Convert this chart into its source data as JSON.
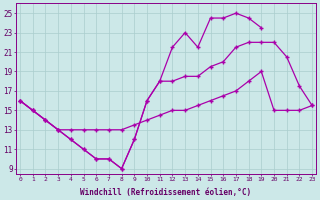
{
  "xlabel": "Windchill (Refroidissement éolien,°C)",
  "yticks": [
    9,
    11,
    13,
    15,
    17,
    19,
    21,
    23,
    25
  ],
  "xticks": [
    0,
    1,
    2,
    3,
    4,
    5,
    6,
    7,
    8,
    9,
    10,
    11,
    12,
    13,
    14,
    15,
    16,
    17,
    18,
    19,
    20,
    21,
    22,
    23
  ],
  "bg_color": "#cce8e8",
  "grid_color": "#aacece",
  "line_color": "#aa00aa",
  "line1_x": [
    0,
    1,
    2,
    3,
    4,
    5,
    6,
    7,
    8,
    9,
    10,
    11,
    12,
    13,
    14,
    15,
    16,
    17,
    18,
    19,
    20,
    21,
    22,
    23
  ],
  "line1_y": [
    16,
    15,
    14,
    13,
    12,
    11,
    10,
    10,
    9,
    12,
    16,
    18,
    21.5,
    23,
    21.5,
    24.5,
    24.5,
    25,
    24.5,
    23.5,
    null,
    null,
    null,
    null
  ],
  "line2_x": [
    0,
    1,
    2,
    3,
    4,
    5,
    6,
    7,
    8,
    9,
    10,
    11,
    12,
    13,
    14,
    15,
    16,
    17,
    18,
    19,
    20,
    21,
    22,
    23
  ],
  "line2_y": [
    16,
    15,
    14,
    13,
    13,
    13,
    13,
    13,
    13,
    13.5,
    14,
    14.5,
    15,
    15,
    15.5,
    16,
    16.5,
    17,
    18,
    19,
    15,
    15,
    15,
    15.5
  ],
  "line3_x": [
    0,
    1,
    2,
    3,
    4,
    5,
    6,
    7,
    8,
    9,
    10,
    11,
    12,
    13,
    14,
    15,
    16,
    17,
    18,
    19,
    20,
    21,
    22,
    23
  ],
  "line3_y": [
    16,
    15,
    14,
    13,
    12,
    11,
    10,
    10,
    9,
    12,
    16,
    18,
    18,
    18.5,
    18.5,
    19.5,
    20,
    21.5,
    22,
    22,
    22,
    20.5,
    17.5,
    15.5
  ]
}
